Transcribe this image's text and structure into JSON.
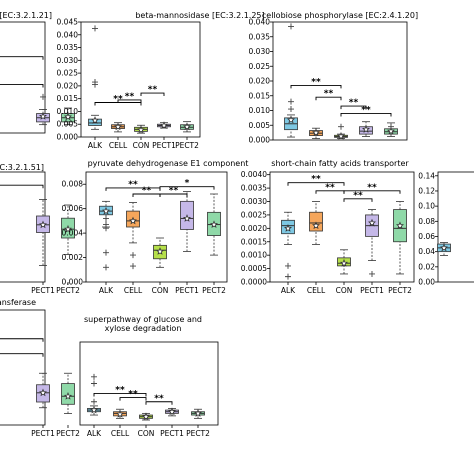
{
  "chart_data": [
    {
      "type": "box",
      "title": "[EC:3.2.1.21]",
      "categories": [
        "ALK",
        "CELL",
        "CON",
        "PECT1",
        "PECT2"
      ],
      "visible_categories": [
        "PECT1",
        "PECT2"
      ],
      "visible_category_labels": [],
      "yticks": [],
      "ylim": [
        0,
        0.04
      ],
      "colors": [
        "#7EC8E3",
        "#F5A65B",
        "#B6E04A",
        "#C5B8E8",
        "#8FD9A8"
      ],
      "boxes": [
        null,
        null,
        null,
        {
          "whisker_low": 0.003,
          "q1": 0.004,
          "median": 0.0055,
          "q3": 0.007,
          "whisker_high": 0.0085,
          "mean": 0.006,
          "outliers": [
            0.013
          ]
        },
        {
          "whisker_low": 0.003,
          "q1": 0.004,
          "median": 0.0055,
          "q3": 0.007,
          "whisker_high": 0.009,
          "mean": 0.0058,
          "outliers": []
        }
      ],
      "significance": [
        {
          "y": 0.0175,
          "label": "*"
        },
        {
          "y": 0.0275,
          "label": "*"
        }
      ]
    },
    {
      "type": "box",
      "title": "beta-mannosidase [EC:3.2.1.25]",
      "categories": [
        "ALK",
        "CELL",
        "CON",
        "PECT1",
        "PECT2"
      ],
      "visible_categories": [
        "ALK",
        "CELL",
        "CON",
        "PECT1",
        "PECT2"
      ],
      "visible_category_labels": [
        "ALK",
        "CELL",
        "CON",
        "PECT1",
        "PECT2"
      ],
      "yticks": [
        "0.000",
        "0.005",
        "0.010",
        "0.015",
        "0.020",
        "0.025",
        "0.030",
        "0.035",
        "0.040",
        "0.045"
      ],
      "ylim": [
        0,
        0.045
      ],
      "colors": [
        "#7EC8E3",
        "#F5A65B",
        "#B6E04A",
        "#C5B8E8",
        "#8FD9A8"
      ],
      "boxes": [
        {
          "whisker_low": 0.003,
          "q1": 0.0045,
          "median": 0.0055,
          "q3": 0.007,
          "whisker_high": 0.0085,
          "mean": 0.0065,
          "outliers": [
            0.0205,
            0.0215,
            0.0425
          ]
        },
        {
          "whisker_low": 0.002,
          "q1": 0.0033,
          "median": 0.004,
          "q3": 0.0048,
          "whisker_high": 0.0056,
          "mean": 0.004,
          "outliers": []
        },
        {
          "whisker_low": 0.0015,
          "q1": 0.0022,
          "median": 0.003,
          "q3": 0.0038,
          "whisker_high": 0.0046,
          "mean": 0.0028,
          "outliers": []
        },
        {
          "whisker_low": 0.0035,
          "q1": 0.004,
          "median": 0.0045,
          "q3": 0.005,
          "whisker_high": 0.0056,
          "mean": 0.0045,
          "outliers": []
        },
        {
          "whisker_low": 0.002,
          "q1": 0.003,
          "median": 0.0038,
          "q3": 0.0048,
          "whisker_high": 0.006,
          "mean": 0.004,
          "outliers": []
        }
      ],
      "significance": [
        {
          "y": 0.0135,
          "label": "**"
        },
        {
          "y": 0.0145,
          "label": "**"
        },
        {
          "y": 0.0172,
          "label": "**"
        }
      ]
    },
    {
      "type": "box",
      "title": "cellobiose phosphorylase [EC:2.4.1.20]",
      "categories": [
        "ALK",
        "CELL",
        "CON",
        "PECT1",
        "PECT2"
      ],
      "visible_categories": [
        "ALK",
        "CELL",
        "CON",
        "PECT1",
        "PECT2"
      ],
      "visible_category_labels": [],
      "yticks": [
        "0.000",
        "0.005",
        "0.010",
        "0.015",
        "0.020",
        "0.025",
        "0.030",
        "0.035",
        "0.040"
      ],
      "ylim": [
        0,
        0.04
      ],
      "colors": [
        "#7EC8E3",
        "#F5A65B",
        "#B6E04A",
        "#C5B8E8",
        "#8FD9A8"
      ],
      "boxes": [
        {
          "whisker_low": 0.001,
          "q1": 0.0035,
          "median": 0.0055,
          "q3": 0.0075,
          "whisker_high": 0.0085,
          "mean": 0.0068,
          "outliers": [
            0.0105,
            0.013,
            0.0385
          ]
        },
        {
          "whisker_low": 0.0005,
          "q1": 0.0015,
          "median": 0.0023,
          "q3": 0.0032,
          "whisker_high": 0.004,
          "mean": 0.0025,
          "outliers": []
        },
        {
          "whisker_low": 0.0005,
          "q1": 0.0009,
          "median": 0.0012,
          "q3": 0.0016,
          "whisker_high": 0.002,
          "mean": 0.0013,
          "outliers": [
            0.0045
          ]
        },
        {
          "whisker_low": 0.0012,
          "q1": 0.002,
          "median": 0.003,
          "q3": 0.0045,
          "whisker_high": 0.0062,
          "mean": 0.0036,
          "outliers": []
        },
        {
          "whisker_low": 0.0012,
          "q1": 0.002,
          "median": 0.0028,
          "q3": 0.0038,
          "whisker_high": 0.0058,
          "mean": 0.003,
          "outliers": [
            0.0045
          ]
        }
      ],
      "significance": [
        {
          "y": 0.0185,
          "label": "**"
        },
        {
          "y": 0.0145,
          "label": "**"
        },
        {
          "y": 0.0115,
          "label": "**"
        },
        {
          "y": 0.009,
          "label": "**"
        }
      ]
    },
    {
      "type": "box",
      "title": "[EC:3.2.1.51]",
      "categories": [
        "ALK",
        "CELL",
        "CON",
        "PECT1",
        "PECT2"
      ],
      "visible_categories": [
        "PECT1",
        "PECT2"
      ],
      "visible_category_labels": [
        "PECT1",
        "PECT2"
      ],
      "yticks": [],
      "ylim": [
        0,
        0.01
      ],
      "colors": [
        "#7EC8E3",
        "#F5A65B",
        "#B6E04A",
        "#C5B8E8",
        "#8FD9A8"
      ],
      "boxes": [
        null,
        null,
        null,
        {
          "whisker_low": 0.0015,
          "q1": 0.0045,
          "median": 0.0052,
          "q3": 0.006,
          "whisker_high": 0.0075,
          "mean": 0.0052,
          "outliers": []
        },
        {
          "whisker_low": 0.0025,
          "q1": 0.004,
          "median": 0.0048,
          "q3": 0.0058,
          "whisker_high": 0.007,
          "mean": 0.0048,
          "outliers": []
        }
      ],
      "significance": [
        {
          "y": 0.0088,
          "label": "*"
        }
      ]
    },
    {
      "type": "box",
      "title": "pyruvate dehydrogenase E1 component",
      "categories": [
        "ALK",
        "CELL",
        "CON",
        "PECT1",
        "PECT2"
      ],
      "visible_categories": [
        "ALK",
        "CELL",
        "CON",
        "PECT1",
        "PECT2"
      ],
      "visible_category_labels": [
        "ALK",
        "CELL",
        "CON",
        "PECT1",
        "PECT2"
      ],
      "yticks": [
        "0.000",
        "0.002",
        "0.004",
        "0.006",
        "0.008"
      ],
      "ylim": [
        0,
        0.009
      ],
      "colors": [
        "#7EC8E3",
        "#F5A65B",
        "#B6E04A",
        "#C5B8E8",
        "#8FD9A8"
      ],
      "boxes": [
        {
          "whisker_low": 0.0045,
          "q1": 0.0055,
          "median": 0.0058,
          "q3": 0.0062,
          "whisker_high": 0.0066,
          "mean": 0.0058,
          "outliers": [
            0.0012,
            0.0024,
            0.0044,
            0.0047,
            0.0052
          ]
        },
        {
          "whisker_low": 0.0032,
          "q1": 0.0045,
          "median": 0.005,
          "q3": 0.0058,
          "whisker_high": 0.0065,
          "mean": 0.005,
          "outliers": [
            0.0022,
            0.0013
          ]
        },
        {
          "whisker_low": 0.0012,
          "q1": 0.0019,
          "median": 0.0026,
          "q3": 0.003,
          "whisker_high": 0.0036,
          "mean": 0.0025,
          "outliers": []
        },
        {
          "whisker_low": 0.0025,
          "q1": 0.0043,
          "median": 0.0052,
          "q3": 0.0066,
          "whisker_high": 0.0074,
          "mean": 0.0052,
          "outliers": []
        },
        {
          "whisker_low": 0.0022,
          "q1": 0.0038,
          "median": 0.0047,
          "q3": 0.0057,
          "whisker_high": 0.0072,
          "mean": 0.0047,
          "outliers": []
        }
      ],
      "significance": [
        {
          "y": 0.0077,
          "label": "**"
        },
        {
          "y": 0.0072,
          "label": "**"
        },
        {
          "y": 0.0072,
          "label": "**"
        },
        {
          "y": 0.0078,
          "label": "*"
        }
      ]
    },
    {
      "type": "box",
      "title": "short-chain fatty acids transporter",
      "categories": [
        "ALK",
        "CELL",
        "CON",
        "PECT1",
        "PECT2"
      ],
      "visible_categories": [
        "ALK",
        "CELL",
        "CON",
        "PECT1",
        "PECT2"
      ],
      "visible_category_labels": [
        "ALK",
        "CELL",
        "CON",
        "PECT1",
        "PECT2"
      ],
      "yticks": [
        "0.0000",
        "0.0005",
        "0.0010",
        "0.0015",
        "0.0020",
        "0.0025",
        "0.0030",
        "0.0035",
        "0.0040"
      ],
      "ylim": [
        0,
        0.0041
      ],
      "colors": [
        "#7EC8E3",
        "#F5A65B",
        "#B6E04A",
        "#C5B8E8",
        "#8FD9A8"
      ],
      "boxes": [
        {
          "whisker_low": 0.0014,
          "q1": 0.0018,
          "median": 0.0021,
          "q3": 0.0023,
          "whisker_high": 0.0026,
          "mean": 0.002,
          "outliers": [
            0.0002,
            0.0006
          ]
        },
        {
          "whisker_low": 0.0014,
          "q1": 0.0019,
          "median": 0.0022,
          "q3": 0.0026,
          "whisker_high": 0.003,
          "mean": 0.0021,
          "outliers": []
        },
        {
          "whisker_low": 0.0003,
          "q1": 0.0006,
          "median": 0.0007,
          "q3": 0.0009,
          "whisker_high": 0.0012,
          "mean": 0.0007,
          "outliers": []
        },
        {
          "whisker_low": 0.0008,
          "q1": 0.0017,
          "median": 0.0021,
          "q3": 0.0025,
          "whisker_high": 0.0027,
          "mean": 0.0022,
          "outliers": [
            0.0003
          ]
        },
        {
          "whisker_low": 0.0003,
          "q1": 0.0015,
          "median": 0.002,
          "q3": 0.0027,
          "whisker_high": 0.003,
          "mean": 0.0021,
          "outliers": []
        }
      ],
      "significance": [
        {
          "y": 0.0037,
          "label": "**"
        },
        {
          "y": 0.0034,
          "label": "**"
        },
        {
          "y": 0.0031,
          "label": "**"
        },
        {
          "y": 0.0034,
          "label": "**"
        }
      ]
    },
    {
      "type": "box",
      "title": "",
      "categories": [
        "ALK",
        "CELL",
        "CON",
        "PECT1",
        "PECT2"
      ],
      "visible_categories": [
        "ALK"
      ],
      "visible_category_labels": [],
      "yticks": [
        "0.00",
        "0.02",
        "0.04",
        "0.06",
        "0.08",
        "0.10",
        "0.12",
        "0.14"
      ],
      "ylim": [
        0,
        0.145
      ],
      "colors": [
        "#7EC8E3",
        "#F5A65B",
        "#B6E04A",
        "#C5B8E8",
        "#8FD9A8"
      ],
      "boxes": [
        {
          "whisker_low": 0.035,
          "q1": 0.04,
          "median": 0.045,
          "q3": 0.05,
          "whisker_high": 0.052,
          "mean": 0.045,
          "outliers": []
        },
        null,
        null,
        null,
        null
      ],
      "significance": []
    },
    {
      "type": "box",
      "title": "…ltransferase",
      "categories": [
        "ALK",
        "CELL",
        "CON",
        "PECT1",
        "PECT2"
      ],
      "visible_categories": [
        "PECT1",
        "PECT2"
      ],
      "visible_category_labels": [
        "PECT1",
        "PECT2"
      ],
      "yticks": [],
      "ylim": [
        0,
        0.01
      ],
      "colors": [
        "#7EC8E3",
        "#F5A65B",
        "#B6E04A",
        "#C5B8E8",
        "#8FD9A8"
      ],
      "boxes": [
        null,
        null,
        null,
        {
          "whisker_low": 0.0015,
          "q1": 0.002,
          "median": 0.0028,
          "q3": 0.0035,
          "whisker_high": 0.0045,
          "mean": 0.0028,
          "outliers": []
        },
        {
          "whisker_low": 0.001,
          "q1": 0.0018,
          "median": 0.0025,
          "q3": 0.0036,
          "whisker_high": 0.0045,
          "mean": 0.0025,
          "outliers": []
        }
      ],
      "significance": [
        {
          "y": 0.0075,
          "label": "*"
        },
        {
          "y": 0.0062,
          "label": "*"
        }
      ]
    },
    {
      "type": "box",
      "title": "superpathway of glucose and xylose degradation",
      "categories": [
        "ALK",
        "CELL",
        "CON",
        "PECT1",
        "PECT2"
      ],
      "visible_categories": [
        "ALK",
        "CELL",
        "CON",
        "PECT1",
        "PECT2"
      ],
      "visible_category_labels": [
        "ALK",
        "CELL",
        "CON",
        "PECT1",
        "PECT2"
      ],
      "yticks": [],
      "ylim": [
        0,
        0.01
      ],
      "colors": [
        "#7EC8E3",
        "#F5A65B",
        "#B6E04A",
        "#C5B8E8",
        "#8FD9A8"
      ],
      "boxes": [
        {
          "whisker_low": 0.0012,
          "q1": 0.0016,
          "median": 0.0018,
          "q3": 0.002,
          "whisker_high": 0.0023,
          "mean": 0.0018,
          "outliers": [
            0.0028,
            0.005,
            0.0058
          ]
        },
        {
          "whisker_low": 0.0008,
          "q1": 0.0011,
          "median": 0.0014,
          "q3": 0.0016,
          "whisker_high": 0.0019,
          "mean": 0.0013,
          "outliers": []
        },
        {
          "whisker_low": 0.0006,
          "q1": 0.0008,
          "median": 0.001,
          "q3": 0.0012,
          "whisker_high": 0.0014,
          "mean": 0.001,
          "outliers": []
        },
        {
          "whisker_low": 0.0011,
          "q1": 0.0014,
          "median": 0.0016,
          "q3": 0.0018,
          "whisker_high": 0.002,
          "mean": 0.0016,
          "outliers": []
        },
        {
          "whisker_low": 0.0008,
          "q1": 0.0012,
          "median": 0.0014,
          "q3": 0.0016,
          "whisker_high": 0.0019,
          "mean": 0.0014,
          "outliers": []
        }
      ],
      "significance": [
        {
          "y": 0.0038,
          "label": "**"
        },
        {
          "y": 0.0033,
          "label": "**"
        },
        {
          "y": 0.0028,
          "label": "**"
        }
      ]
    }
  ]
}
